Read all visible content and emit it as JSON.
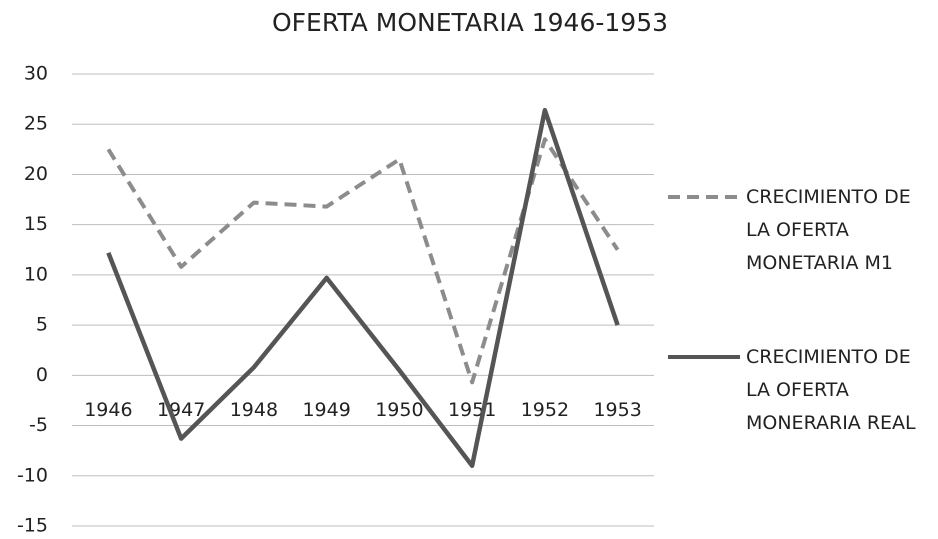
{
  "chart_data": {
    "type": "line",
    "title": "OFERTA MONETARIA 1946-1953",
    "categories": [
      "1946",
      "1947",
      "1948",
      "1949",
      "1950",
      "1951",
      "1952",
      "1953"
    ],
    "series": [
      {
        "name": "CRECIMIENTO DE LA OFERTA MONETARIA M1",
        "color": "#8c8c8c",
        "dash": true,
        "values": [
          22.5,
          10.8,
          17.2,
          16.8,
          21.5,
          -0.7,
          23.5,
          12.5
        ]
      },
      {
        "name": "CRECIMIENTO DE LA OFERTA MONERARIA REAL",
        "color": "#555555",
        "dash": false,
        "values": [
          12.2,
          -6.3,
          0.8,
          9.7,
          0.5,
          -9.0,
          26.4,
          5.0
        ]
      }
    ],
    "ylim": [
      -15,
      30
    ],
    "yticks": [
      -15,
      -10,
      -5,
      0,
      5,
      10,
      15,
      20,
      25,
      30
    ],
    "grid": true,
    "legend": "right"
  }
}
